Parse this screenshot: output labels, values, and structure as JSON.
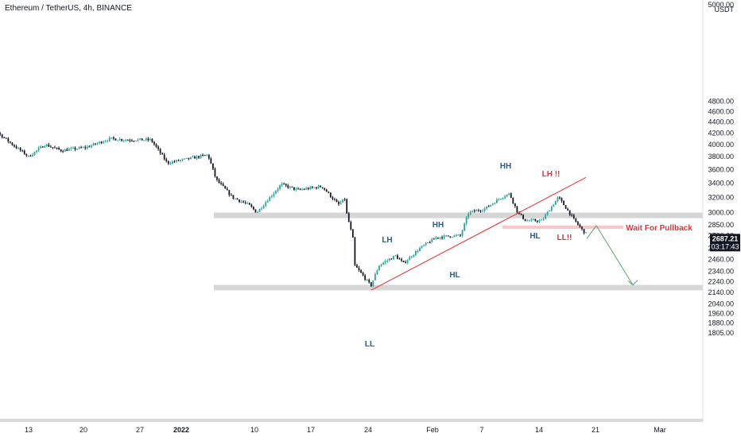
{
  "header": {
    "symbol": "Ethereum / TetherUS",
    "sep1": ", ",
    "interval": "4h",
    "sep2": ", ",
    "exchange": "BINANCE"
  },
  "price_axis": {
    "currency": "USDT",
    "ticks": [
      "5000.00",
      "4800.00",
      "4600.00",
      "4400.00",
      "4200.00",
      "4000.00",
      "3800.00",
      "3600.00",
      "3400.00",
      "3200.00",
      "3000.00",
      "2850.00",
      "2720.00",
      "2580.00",
      "2460.00",
      "2340.00",
      "2240.00",
      "2140.00",
      "2040.00",
      "1960.00",
      "1880.00",
      "1805.00"
    ],
    "last_price": "2687.21",
    "countdown": "03:17:43"
  },
  "time_axis": {
    "ticks": [
      "13",
      "20",
      "27",
      "2022",
      "10",
      "17",
      "24",
      "Feb",
      "7",
      "14",
      "21",
      "Mar"
    ]
  },
  "annotations": {
    "lh1": "LH",
    "hh1": "HH",
    "hh2": "HH",
    "lh2": "LH !!",
    "hl1": "HL",
    "hl2": "HL",
    "ll1": "LL",
    "ll2": "LL!!",
    "wait": "Wait For Pullback"
  },
  "colors": {
    "up": "#26a69a",
    "down": "#131722",
    "trendline": "#ef2b2b",
    "zone": "#d6d6d6",
    "pullback_zone": "#f9c6c9",
    "projection": "#5aa469",
    "label_blue": "#2a5c8a",
    "label_red": "#e0343c"
  },
  "chart_data": {
    "type": "candlestick",
    "symbol": "ETH/USDT",
    "interval": "4h",
    "y_scale": "log",
    "ylim": [
      1780,
      5000
    ],
    "x_range": [
      "2021-12-09",
      "2022-03-01"
    ],
    "anchors": [
      {
        "date": "2021-12-09",
        "close": 4230
      },
      {
        "date": "2021-12-11",
        "close": 4000
      },
      {
        "date": "2021-12-13",
        "close": 3800
      },
      {
        "date": "2021-12-15",
        "close": 4000
      },
      {
        "date": "2021-12-17",
        "close": 3900
      },
      {
        "date": "2021-12-20",
        "close": 3950
      },
      {
        "date": "2021-12-23",
        "close": 4100
      },
      {
        "date": "2021-12-25",
        "close": 4080
      },
      {
        "date": "2021-12-28",
        "close": 4080
      },
      {
        "date": "2021-12-30",
        "close": 3700
      },
      {
        "date": "2022-01-01",
        "close": 3750
      },
      {
        "date": "2022-01-04",
        "close": 3830
      },
      {
        "date": "2022-01-05",
        "close": 3450
      },
      {
        "date": "2022-01-07",
        "close": 3200
      },
      {
        "date": "2022-01-09",
        "close": 3100
      },
      {
        "date": "2022-01-10",
        "close": 3000
      },
      {
        "date": "2022-01-12",
        "close": 3250
      },
      {
        "date": "2022-01-13",
        "close": 3380
      },
      {
        "date": "2022-01-15",
        "close": 3300
      },
      {
        "date": "2022-01-18",
        "close": 3350
      },
      {
        "date": "2022-01-20",
        "close": 3100
      },
      {
        "date": "2022-01-21",
        "close": 3200
      },
      {
        "date": "2022-01-21",
        "close": 3000
      },
      {
        "date": "2022-01-22",
        "close": 2600
      },
      {
        "date": "2022-01-22",
        "close": 2400
      },
      {
        "date": "2022-01-24",
        "close": 2200
      },
      {
        "date": "2022-01-25",
        "close": 2400
      },
      {
        "date": "2022-01-27",
        "close": 2500
      },
      {
        "date": "2022-01-28",
        "close": 2420
      },
      {
        "date": "2022-01-30",
        "close": 2580
      },
      {
        "date": "2022-02-01",
        "close": 2700
      },
      {
        "date": "2022-02-03",
        "close": 2720
      },
      {
        "date": "2022-02-04",
        "close": 2720
      },
      {
        "date": "2022-02-05",
        "close": 3000
      },
      {
        "date": "2022-02-07",
        "close": 3050
      },
      {
        "date": "2022-02-09",
        "close": 3200
      },
      {
        "date": "2022-02-10",
        "close": 3250
      },
      {
        "date": "2022-02-11",
        "close": 3000
      },
      {
        "date": "2022-02-12",
        "close": 2900
      },
      {
        "date": "2022-02-14",
        "close": 2900
      },
      {
        "date": "2022-02-15",
        "close": 3050
      },
      {
        "date": "2022-02-16",
        "close": 3200
      },
      {
        "date": "2022-02-18",
        "close": 2900
      },
      {
        "date": "2022-02-19",
        "close": 2780
      },
      {
        "date": "2022-02-20",
        "close": 2687
      }
    ],
    "horizontal_zones": [
      {
        "name": "support-resistance",
        "low": 2930,
        "high": 3000
      },
      {
        "name": "demand",
        "low": 2160,
        "high": 2210
      },
      {
        "name": "pullback",
        "low": 2800,
        "high": 2840
      }
    ],
    "trendline": {
      "from": {
        "date": "2022-01-24",
        "price": 2160
      },
      "to": {
        "date": "2022-02-19",
        "price": 3480
      }
    },
    "projection": [
      {
        "date": "2022-02-20",
        "price": 2687
      },
      {
        "date": "2022-02-22",
        "price": 2840
      },
      {
        "date": "2022-02-25",
        "price": 2210
      }
    ]
  }
}
